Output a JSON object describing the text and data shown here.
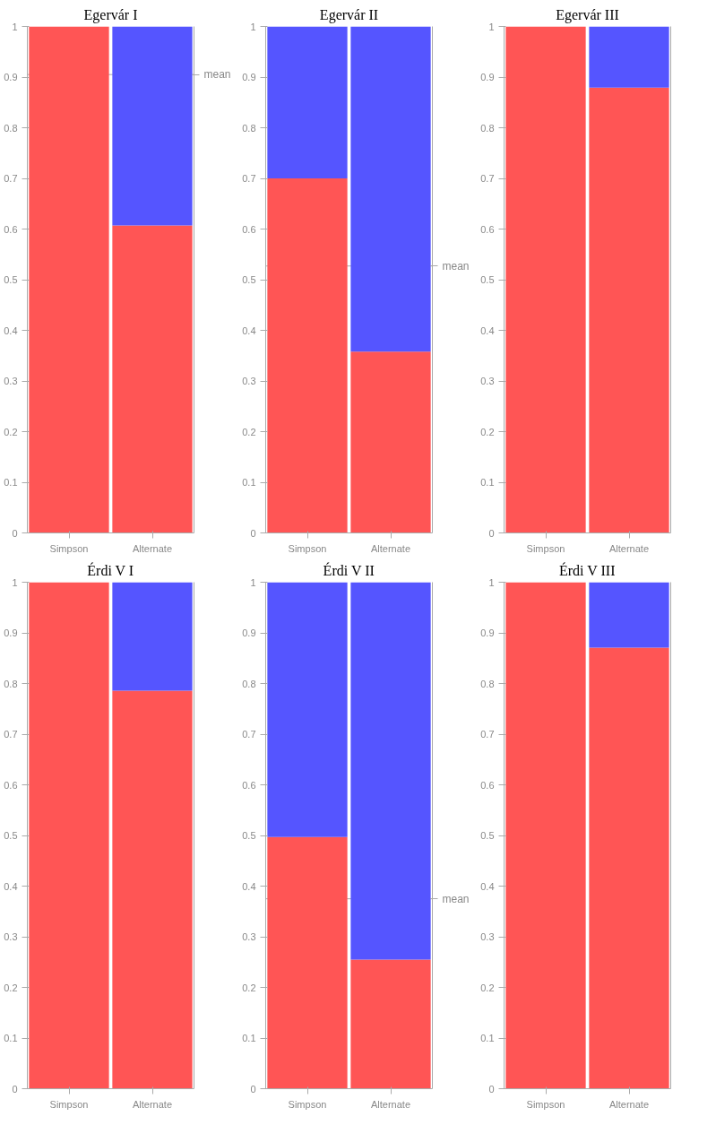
{
  "chart_data": [
    {
      "type": "bar",
      "title": "Egervár I",
      "categories": [
        "Simpson",
        "Alternate"
      ],
      "stacked": true,
      "ylim": [
        0,
        1
      ],
      "yticks": [
        0,
        0.1,
        0.2,
        0.3,
        0.4,
        0.5,
        0.6,
        0.7,
        0.8,
        0.9,
        1
      ],
      "series": [
        {
          "color": "#ff5555",
          "values": [
            1,
            0.607
          ]
        },
        {
          "color": "#5555ff",
          "values": [
            0,
            0.393
          ]
        }
      ],
      "ref_lines": [
        {
          "axis": "y",
          "value": 0.905,
          "label": "mean",
          "color": "#aaaaaa"
        }
      ]
    },
    {
      "type": "bar",
      "title": "Egervár II",
      "categories": [
        "Simpson",
        "Alternate"
      ],
      "stacked": true,
      "ylim": [
        0,
        1
      ],
      "yticks": [
        0,
        0.1,
        0.2,
        0.3,
        0.4,
        0.5,
        0.6,
        0.7,
        0.8,
        0.9,
        1
      ],
      "series": [
        {
          "color": "#ff5555",
          "values": [
            0.7,
            0.358
          ]
        },
        {
          "color": "#5555ff",
          "values": [
            0.3,
            0.642
          ]
        }
      ],
      "ref_lines": [
        {
          "axis": "y",
          "value": 0.527,
          "label": "mean",
          "color": "#aaaaaa"
        }
      ]
    },
    {
      "type": "bar",
      "title": "Egervár III",
      "categories": [
        "Simpson",
        "Alternate"
      ],
      "stacked": true,
      "ylim": [
        0,
        1
      ],
      "yticks": [
        0,
        0.1,
        0.2,
        0.3,
        0.4,
        0.5,
        0.6,
        0.7,
        0.8,
        0.9,
        1
      ],
      "series": [
        {
          "color": "#ff5555",
          "values": [
            1,
            0.879
          ]
        },
        {
          "color": "#5555ff",
          "values": [
            0,
            0.121
          ]
        }
      ]
    },
    {
      "type": "bar",
      "title": "Érdi V I",
      "categories": [
        "Simpson",
        "Alternate"
      ],
      "stacked": true,
      "ylim": [
        0,
        1
      ],
      "yticks": [
        0,
        0.1,
        0.2,
        0.3,
        0.4,
        0.5,
        0.6,
        0.7,
        0.8,
        0.9,
        1
      ],
      "series": [
        {
          "color": "#ff5555",
          "values": [
            1,
            0.786
          ]
        },
        {
          "color": "#5555ff",
          "values": [
            0,
            0.214
          ]
        }
      ]
    },
    {
      "type": "bar",
      "title": "Érdi V II",
      "categories": [
        "Simpson",
        "Alternate"
      ],
      "stacked": true,
      "ylim": [
        0,
        1
      ],
      "yticks": [
        0,
        0.1,
        0.2,
        0.3,
        0.4,
        0.5,
        0.6,
        0.7,
        0.8,
        0.9,
        1
      ],
      "series": [
        {
          "color": "#ff5555",
          "values": [
            0.497,
            0.255
          ]
        },
        {
          "color": "#5555ff",
          "values": [
            0.503,
            0.745
          ]
        }
      ],
      "ref_lines": [
        {
          "axis": "y",
          "value": 0.375,
          "label": "mean",
          "color": "#aaaaaa"
        }
      ]
    },
    {
      "type": "bar",
      "title": "Érdi V III",
      "categories": [
        "Simpson",
        "Alternate"
      ],
      "stacked": true,
      "ylim": [
        0,
        1
      ],
      "yticks": [
        0,
        0.1,
        0.2,
        0.3,
        0.4,
        0.5,
        0.6,
        0.7,
        0.8,
        0.9,
        1
      ],
      "series": [
        {
          "color": "#ff5555",
          "values": [
            1,
            0.871
          ]
        },
        {
          "color": "#5555ff",
          "values": [
            0,
            0.129
          ]
        }
      ]
    }
  ]
}
